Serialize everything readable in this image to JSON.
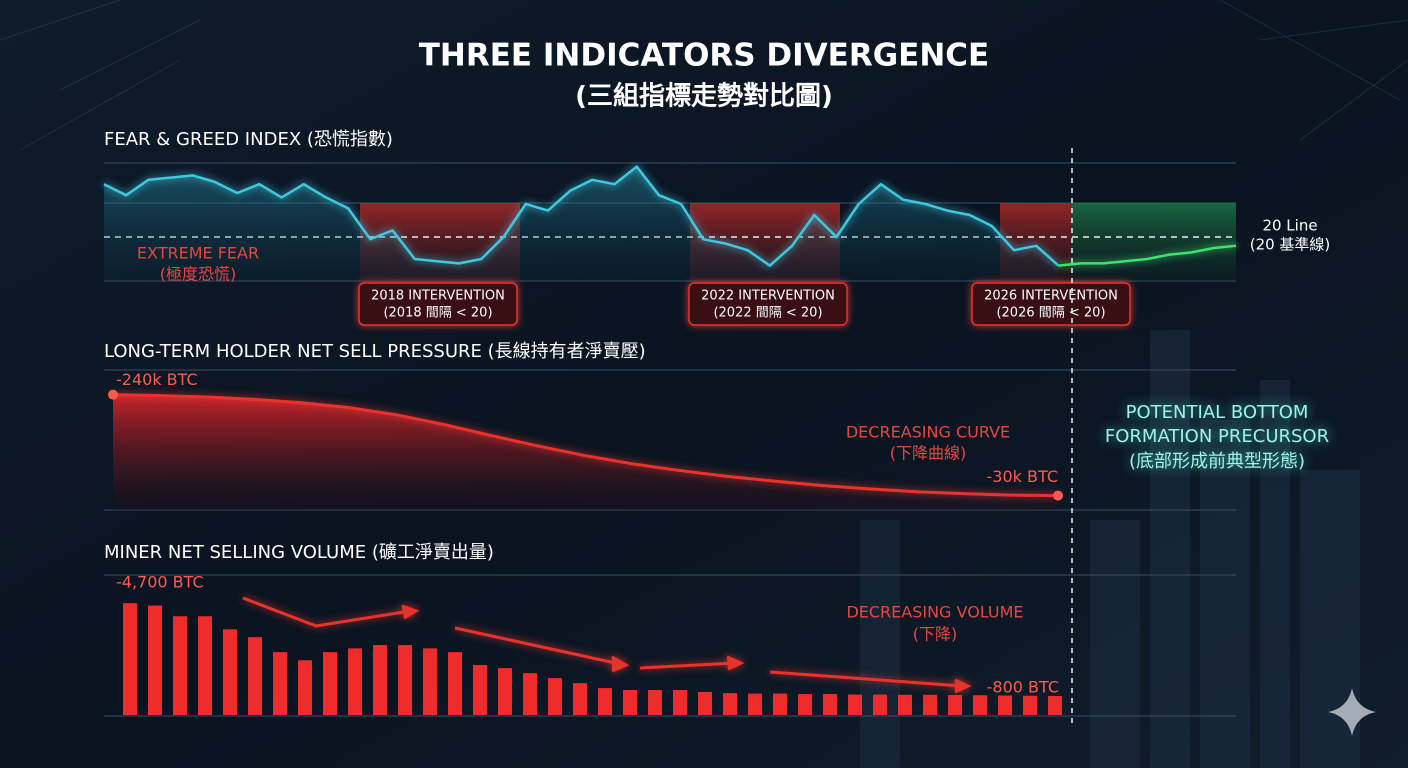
{
  "title": "THREE INDICATORS DIVERGENCE",
  "subtitle": "(三組指標走勢對比圖)",
  "side_note": [
    "POTENTIAL BOTTOM",
    "FORMATION PRECURSOR",
    "(底部形成前典型形態)"
  ],
  "chart_data": [
    {
      "type": "line",
      "title": "FEAR & GREED INDEX (恐慌指數)",
      "ylim": [
        0,
        60
      ],
      "series": [
        {
          "color": "#3fc8e0",
          "values": [
            44,
            39,
            46,
            47,
            48,
            45,
            40,
            44,
            38,
            44,
            38,
            33,
            19,
            23,
            10,
            9,
            8,
            10,
            20,
            35,
            32,
            41,
            46,
            44,
            52,
            39,
            35,
            19,
            17,
            14,
            7,
            16,
            30,
            20,
            35,
            44,
            37,
            35,
            32,
            30,
            25,
            14,
            16,
            7,
            null,
            null,
            null,
            null,
            null,
            null,
            null,
            null
          ]
        },
        {
          "color": "#3ee070",
          "values": [
            null,
            null,
            null,
            null,
            null,
            null,
            null,
            null,
            null,
            null,
            null,
            null,
            null,
            null,
            null,
            null,
            null,
            null,
            null,
            null,
            null,
            null,
            null,
            null,
            null,
            null,
            null,
            null,
            null,
            null,
            null,
            null,
            null,
            null,
            null,
            null,
            null,
            null,
            null,
            null,
            null,
            null,
            null,
            7,
            8,
            8,
            9,
            10,
            12,
            13,
            15,
            16
          ]
        }
      ],
      "reference": {
        "value": 20,
        "label": [
          "20 Line",
          "(20 基準線)"
        ]
      },
      "zone_label": [
        "EXTREME FEAR",
        "(極度恐慌)"
      ],
      "annotations": [
        [
          "2018 INTERVENTION",
          "(2018 間隔 < 20)"
        ],
        [
          "2022 INTERVENTION",
          "(2022 間隔 < 20)"
        ],
        [
          "2026 INTERVENTION",
          "(2026 間隔 < 20)"
        ]
      ]
    },
    {
      "type": "area",
      "title": "LONG-TERM HOLDER NET SELL PRESSURE (長線持有者淨賣壓)",
      "ylim": [
        0,
        -260000
      ],
      "color": "#e8332c",
      "values": [
        -240000,
        -238000,
        -235000,
        -230000,
        -223000,
        -213000,
        -198000,
        -178000,
        -155000,
        -133000,
        -113000,
        -96000,
        -82000,
        -70000,
        -60000,
        -51000,
        -44000,
        -38000,
        -34000,
        -31000,
        -30000
      ],
      "value_labels": [
        "-240k BTC",
        null,
        null,
        null,
        null,
        null,
        null,
        null,
        null,
        null,
        null,
        null,
        null,
        null,
        null,
        null,
        null,
        null,
        null,
        null,
        "-30k BTC"
      ],
      "annotation": [
        "DECREASING CURVE",
        "(下降曲線)"
      ]
    },
    {
      "type": "bar",
      "title": "MINER NET SELLING VOLUME (礦工淨賣出量)",
      "ylim": [
        0,
        -5000
      ],
      "color": "#ee2c2c",
      "values": [
        -4700,
        -4600,
        -4150,
        -4150,
        -3600,
        -3270,
        -2640,
        -2300,
        -2640,
        -2800,
        -2940,
        -2940,
        -2800,
        -2640,
        -2100,
        -1970,
        -1760,
        -1550,
        -1340,
        -1130,
        -1050,
        -1050,
        -1050,
        -970,
        -920,
        -900,
        -900,
        -880,
        -880,
        -860,
        -860,
        -850,
        -850,
        -840,
        -830,
        -820,
        -810,
        -800
      ],
      "value_labels": [
        "-4,700 BTC",
        null,
        null,
        null,
        null,
        null,
        null,
        null,
        null,
        null,
        null,
        null,
        null,
        null,
        null,
        null,
        null,
        null,
        null,
        null,
        null,
        null,
        null,
        null,
        null,
        null,
        null,
        null,
        null,
        null,
        null,
        null,
        null,
        null,
        null,
        null,
        null,
        "-800 BTC"
      ],
      "annotation": [
        "DECREASING VOLUME",
        "(下降)"
      ]
    }
  ]
}
